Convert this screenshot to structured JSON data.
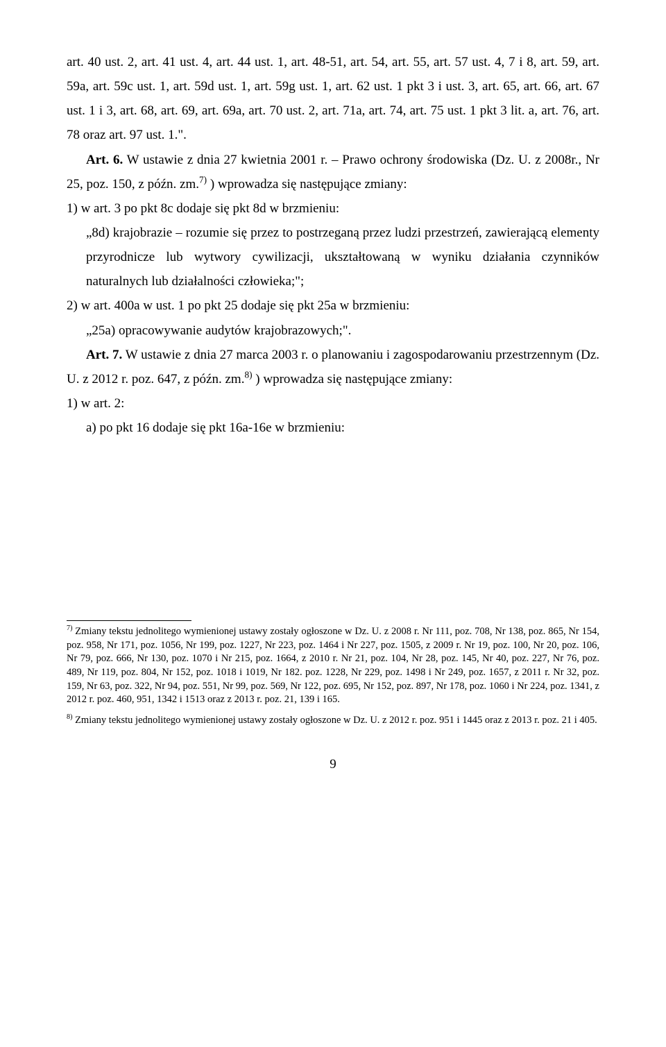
{
  "para1": "art. 40 ust. 2, art. 41 ust. 4, art. 44 ust. 1, art. 48-51, art. 54, art. 55, art. 57 ust. 4, 7 i 8, art. 59, art. 59a, art. 59c ust. 1, art. 59d ust. 1, art. 59g ust. 1, art. 62 ust. 1 pkt 3 i ust. 3, art. 65, art. 66, art. 67 ust. 1 i 3, art. 68, art. 69, art. 69a, art. 70 ust. 2, art. 71a, art. 74, art. 75 ust. 1 pkt 3 lit. a, art. 76, art. 78 oraz art. 97 ust. 1.\".",
  "art6_label": "Art. 6.",
  "art6_text_a": " W ustawie z dnia 27 kwietnia 2001 r. – Prawo ochrony środowiska (Dz. U. z 2008r., Nr 25, poz. 150, z późn. zm.",
  "fn7_mark": "7)",
  "art6_text_b": " ) wprowadza się następujące zmiany:",
  "item1": "1) w art. 3 po pkt 8c dodaje się pkt 8d w brzmieniu:",
  "item1_quote": "„8d) krajobrazie – rozumie się przez to postrzeganą przez ludzi przestrzeń, zawierającą elementy przyrodnicze lub wytwory cywilizacji, ukształtowaną w wyniku działania czynników naturalnych lub działalności człowieka;\";",
  "item2": "2) w art. 400a w ust. 1 po pkt 25 dodaje się pkt 25a w brzmieniu:",
  "item2_quote": "„25a) opracowywanie audytów krajobrazowych;\".",
  "art7_label": "Art. 7.",
  "art7_text_a": " W ustawie z dnia 27 marca 2003 r. o planowaniu i zagospodarowaniu przestrzennym (Dz. U. z 2012 r. poz. 647, z późn. zm.",
  "fn8_mark": "8)",
  "art7_text_b": " ) wprowadza się następujące zmiany:",
  "item3": "1) w art. 2:",
  "item3a": "a) po pkt 16 dodaje się pkt 16a-16e w brzmieniu:",
  "footnote7_mark": "7)",
  "footnote7": " Zmiany tekstu jednolitego wymienionej ustawy zostały ogłoszone w Dz. U. z 2008 r. Nr 111, poz. 708, Nr 138, poz. 865, Nr 154, poz. 958, Nr 171, poz. 1056, Nr 199, poz. 1227, Nr 223, poz. 1464  i Nr 227, poz. 1505, z 2009 r. Nr 19, poz. 100, Nr 20, poz. 106, Nr 79, poz. 666, Nr 130, poz. 1070 i Nr 215, poz. 1664, z 2010 r. Nr 21, poz. 104, Nr 28, poz. 145, Nr 40, poz. 227, Nr 76, poz. 489, Nr 119, poz. 804, Nr 152, poz. 1018 i 1019, Nr 182. poz. 1228, Nr 229, poz. 1498 i Nr 249, poz. 1657, z 2011 r. Nr 32, poz. 159, Nr 63, poz. 322,  Nr 94, poz. 551, Nr 99, poz. 569, Nr 122, poz. 695, Nr 152, poz. 897, Nr 178, poz. 1060 i Nr 224, poz. 1341, z 2012 r. poz. 460, 951, 1342 i 1513 oraz z 2013 r. poz. 21, 139 i 165.",
  "footnote8_mark": "8)",
  "footnote8": " Zmiany tekstu jednolitego wymienionej ustawy zostały ogłoszone w Dz. U. z 2012 r. poz. 951 i 1445 oraz z 2013 r. poz. 21 i 405.",
  "page_number": "9"
}
